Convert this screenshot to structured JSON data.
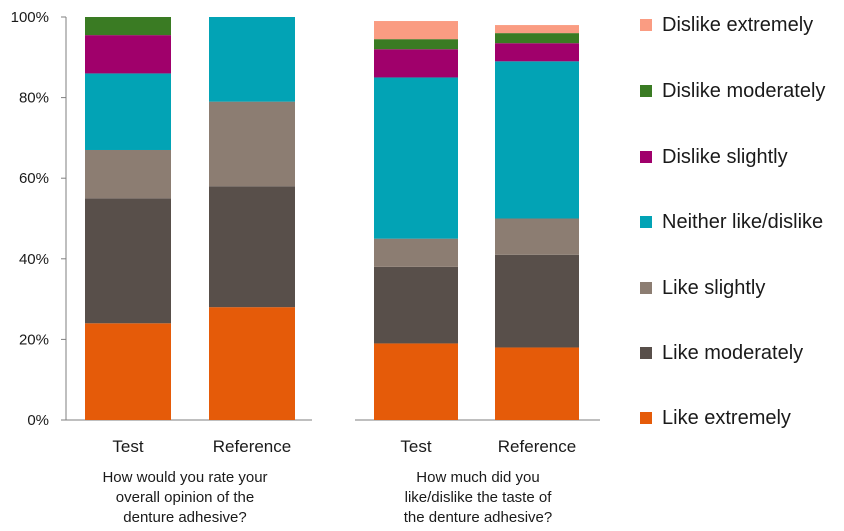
{
  "chart_data": {
    "type": "bar",
    "stacked": true,
    "normalized": true,
    "ylim": [
      0,
      100
    ],
    "y_ticks": [
      "0%",
      "20%",
      "40%",
      "60%",
      "80%",
      "100%"
    ],
    "legend_position": "right",
    "groups": [
      {
        "caption": [
          "How would you rate your",
          "overall opinion of the",
          "denture adhesive?"
        ],
        "categories": [
          "Test",
          "Reference"
        ],
        "series": [
          {
            "name": "Like extremely",
            "color": "#e55b09",
            "values": [
              24,
              28
            ]
          },
          {
            "name": "Like moderately",
            "color": "#584f4a",
            "values": [
              31,
              30
            ]
          },
          {
            "name": "Like slightly",
            "color": "#8c7d72",
            "values": [
              12,
              21
            ]
          },
          {
            "name": "Neither like/dislike",
            "color": "#02a3b5",
            "values": [
              19,
              21
            ]
          },
          {
            "name": "Dislike slightly",
            "color": "#a0006b",
            "values": [
              9.5,
              0
            ]
          },
          {
            "name": "Dislike moderately",
            "color": "#3a7b23",
            "values": [
              4.5,
              0
            ]
          },
          {
            "name": "Dislike extremely",
            "color": "#fa9c82",
            "values": [
              0,
              0
            ]
          }
        ]
      },
      {
        "caption": [
          "How much did you",
          "like/dislike the taste of",
          "the denture adhesive?"
        ],
        "categories": [
          "Test",
          "Reference"
        ],
        "series": [
          {
            "name": "Like extremely",
            "color": "#e55b09",
            "values": [
              19,
              18
            ]
          },
          {
            "name": "Like moderately",
            "color": "#584f4a",
            "values": [
              19,
              23
            ]
          },
          {
            "name": "Like slightly",
            "color": "#8c7d72",
            "values": [
              7,
              9
            ]
          },
          {
            "name": "Neither like/dislike",
            "color": "#02a3b5",
            "values": [
              40,
              39
            ]
          },
          {
            "name": "Dislike slightly",
            "color": "#a0006b",
            "values": [
              7,
              4.5
            ]
          },
          {
            "name": "Dislike moderately",
            "color": "#3a7b23",
            "values": [
              2.5,
              2.5
            ]
          },
          {
            "name": "Dislike extremely",
            "color": "#fa9c82",
            "values": [
              4.5,
              2
            ]
          }
        ]
      }
    ],
    "legend": [
      {
        "label": "Dislike extremely",
        "color": "#fa9c82"
      },
      {
        "label": "Dislike moderately",
        "color": "#3a7b23"
      },
      {
        "label": "Dislike slightly",
        "color": "#a0006b"
      },
      {
        "label": "Neither like/dislike",
        "color": "#02a3b5"
      },
      {
        "label": "Like slightly",
        "color": "#8c7d72"
      },
      {
        "label": "Like moderately",
        "color": "#584f4a"
      },
      {
        "label": "Like extremely",
        "color": "#e55b09"
      }
    ]
  }
}
